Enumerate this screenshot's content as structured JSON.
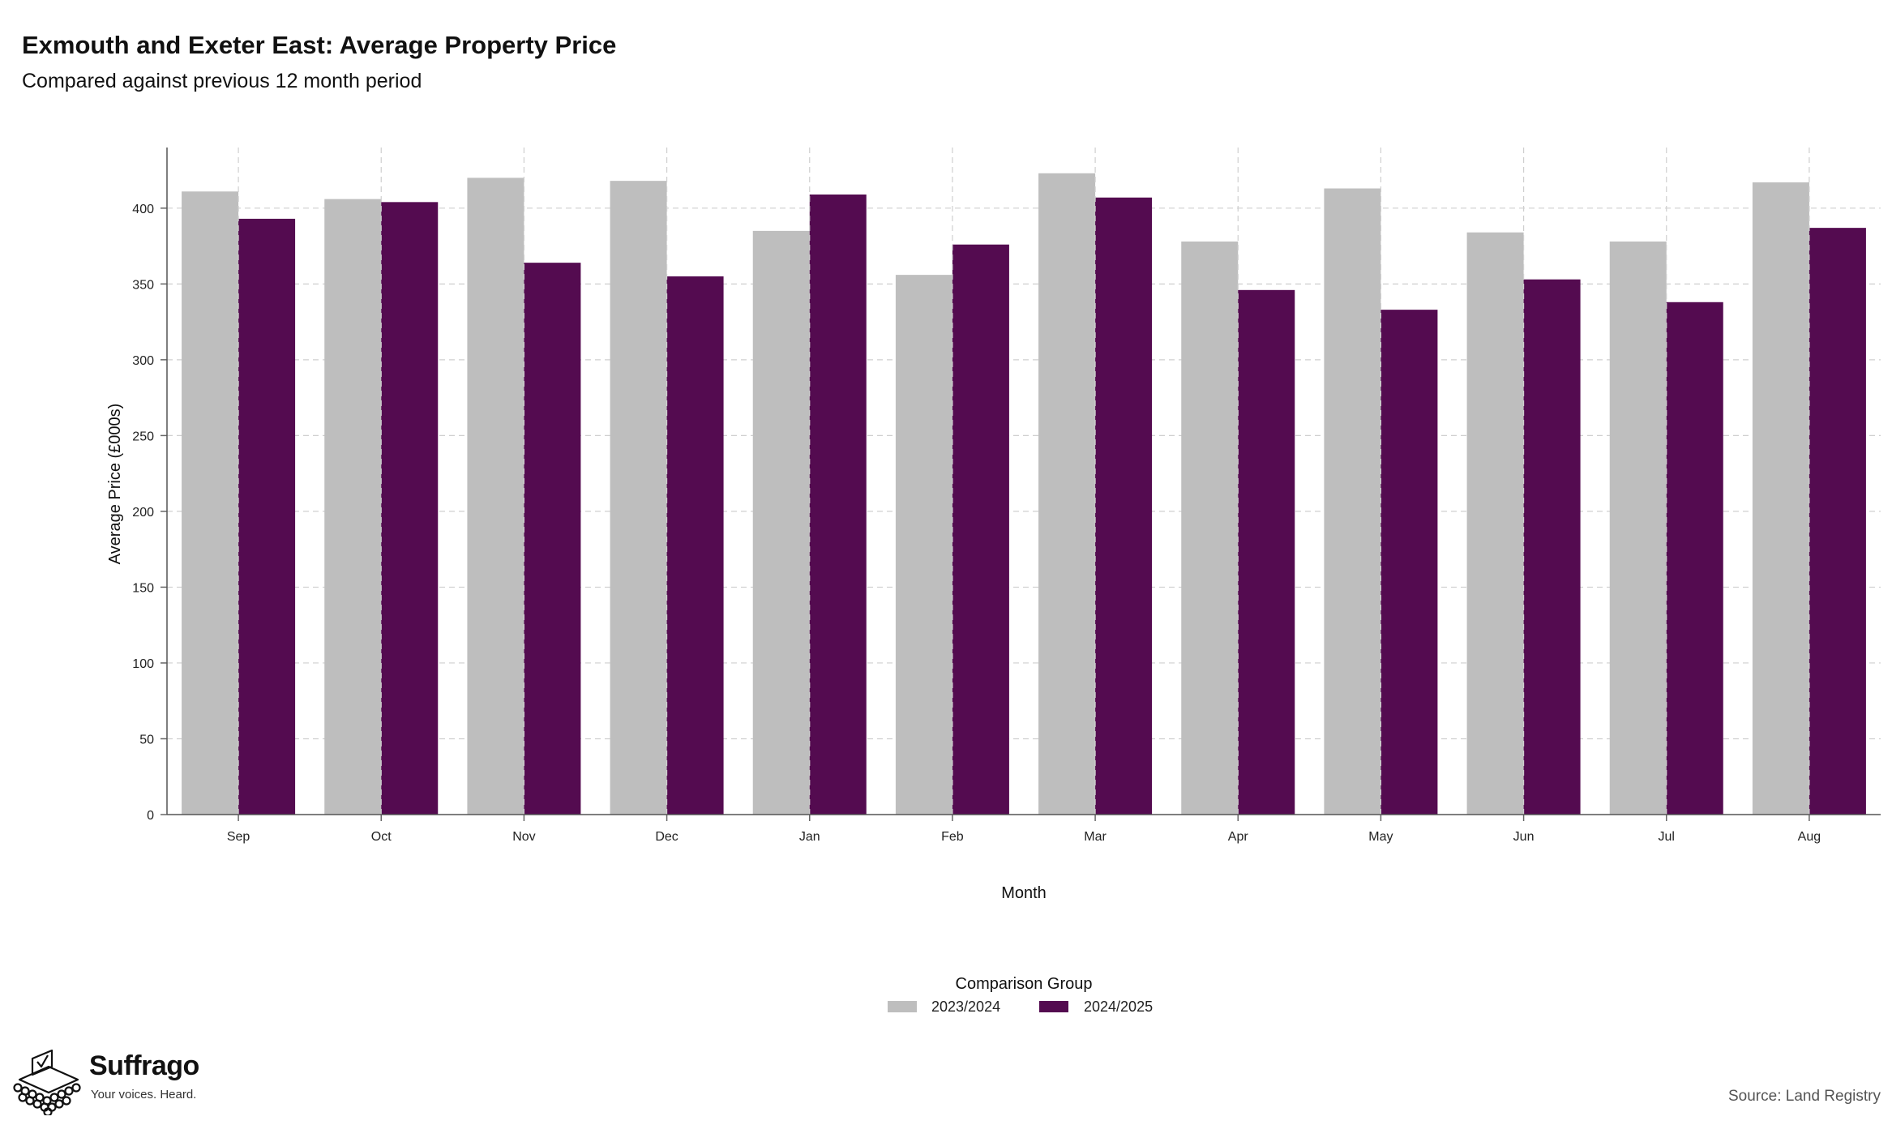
{
  "chart_data": {
    "type": "bar",
    "title": "Exmouth and Exeter East: Average Property Price",
    "subtitle": "Compared against previous 12 month period",
    "xlabel": "Month",
    "ylabel": "Average Price (£000s)",
    "categories": [
      "Sep",
      "Oct",
      "Nov",
      "Dec",
      "Jan",
      "Feb",
      "Mar",
      "Apr",
      "May",
      "Jun",
      "Jul",
      "Aug"
    ],
    "series": [
      {
        "name": "2023/2024",
        "color": "#bebebe",
        "values": [
          411,
          406,
          420,
          418,
          385,
          356,
          423,
          378,
          413,
          384,
          378,
          417
        ]
      },
      {
        "name": "2024/2025",
        "color": "#540b50",
        "values": [
          393,
          404,
          364,
          355,
          409,
          376,
          407,
          346,
          333,
          353,
          338,
          387
        ]
      }
    ],
    "ylim": [
      0,
      440
    ],
    "yticks": [
      0,
      50,
      100,
      150,
      200,
      250,
      300,
      350,
      400
    ],
    "grid": true,
    "legend": {
      "title": "Comparison Group",
      "position": "bottom"
    }
  },
  "branding": {
    "name": "Suffrago",
    "tagline": "Your voices. Heard."
  },
  "source": "Source: Land Registry"
}
